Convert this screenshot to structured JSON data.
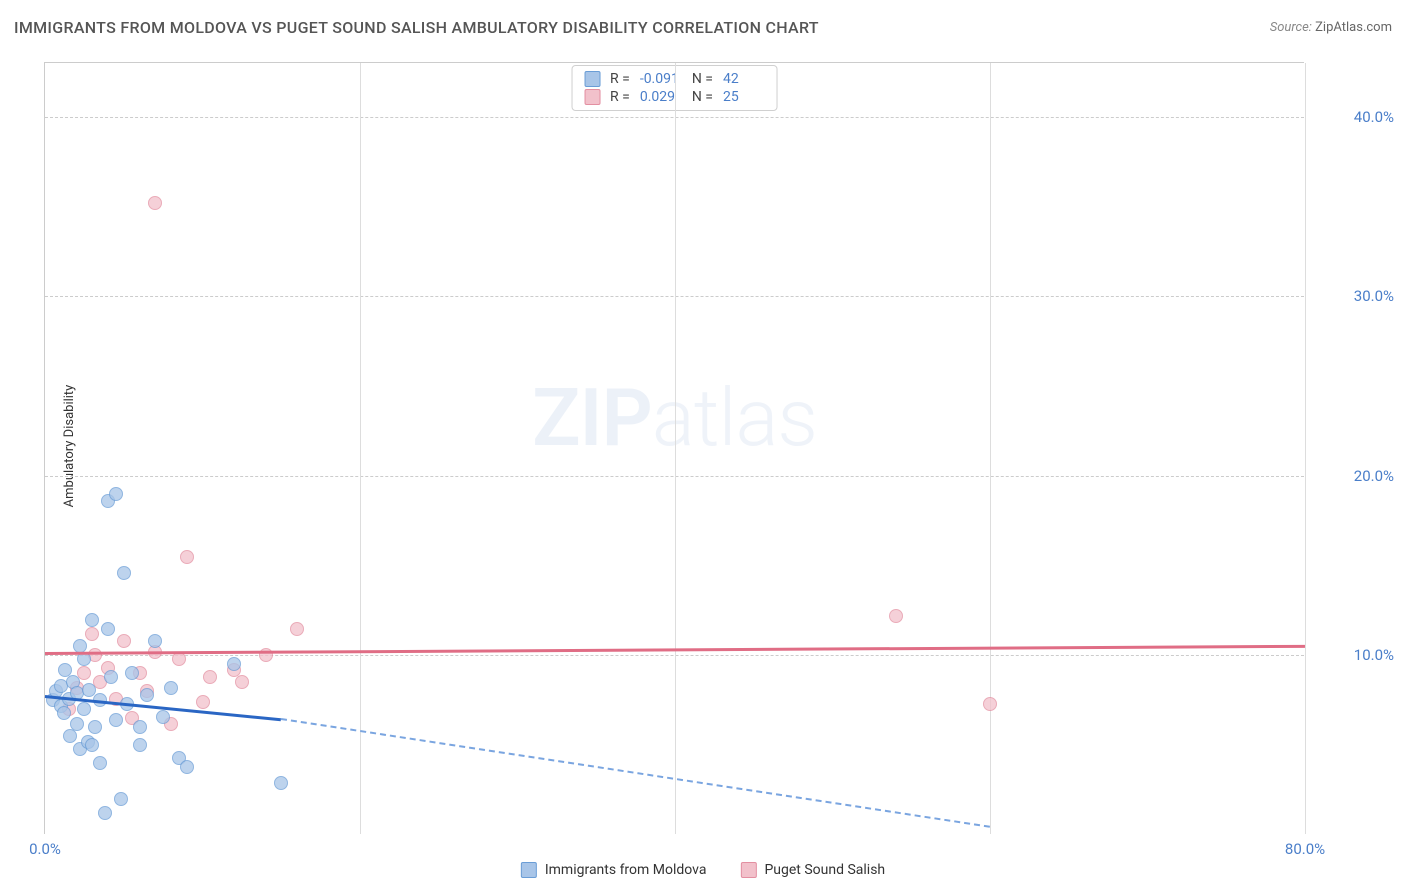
{
  "title": "IMMIGRANTS FROM MOLDOVA VS PUGET SOUND SALISH AMBULATORY DISABILITY CORRELATION CHART",
  "source_prefix": "Source:",
  "source_name": "ZipAtlas.com",
  "y_axis_label": "Ambulatory Disability",
  "watermark_bold": "ZIP",
  "watermark_thin": "atlas",
  "series": [
    {
      "name": "Immigrants from Moldova",
      "color_fill": "#a8c5e8",
      "color_stroke": "#6a9dd6",
      "r": "-0.091",
      "n": "42"
    },
    {
      "name": "Puget Sound Salish",
      "color_fill": "#f2c1cb",
      "color_stroke": "#e38fa1",
      "r": "0.029",
      "n": "25"
    }
  ],
  "chart": {
    "type": "scatter",
    "xlim": [
      0,
      80
    ],
    "ylim": [
      0,
      43
    ],
    "y_ticks": [
      10,
      20,
      30,
      40
    ],
    "y_tick_labels": [
      "10.0%",
      "20.0%",
      "30.0%",
      "40.0%"
    ],
    "x_ticks": [
      0,
      20,
      40,
      60,
      80
    ],
    "x_tick_labels": [
      "0.0%",
      "",
      "",
      "",
      "80.0%"
    ],
    "grid_h_dash_color": "#cccccc",
    "background_color": "#ffffff",
    "trend_lines": [
      {
        "series": 0,
        "solid_color": "#2a66c4",
        "dashed_color": "#7aa5e0",
        "x1": 0,
        "y1": 7.8,
        "x2_solid": 15,
        "y2_solid": 6.5,
        "x2_dash": 60,
        "y2_dash": 0.5
      },
      {
        "series": 1,
        "solid_color": "#e06d85",
        "dashed_color": "#e06d85",
        "x1": 0,
        "y1": 10.2,
        "x2_solid": 80,
        "y2_solid": 10.6
      }
    ],
    "points_s0": [
      [
        0.5,
        7.5
      ],
      [
        0.7,
        8.0
      ],
      [
        1.0,
        7.2
      ],
      [
        1.0,
        8.3
      ],
      [
        1.2,
        6.8
      ],
      [
        1.3,
        9.2
      ],
      [
        1.5,
        7.6
      ],
      [
        1.6,
        5.5
      ],
      [
        1.8,
        8.5
      ],
      [
        2.0,
        6.2
      ],
      [
        2.0,
        7.9
      ],
      [
        2.2,
        4.8
      ],
      [
        2.2,
        10.5
      ],
      [
        2.5,
        7.0
      ],
      [
        2.7,
        5.2
      ],
      [
        2.8,
        8.1
      ],
      [
        3.0,
        12.0
      ],
      [
        3.2,
        6.0
      ],
      [
        3.5,
        7.5
      ],
      [
        3.5,
        4.0
      ],
      [
        3.8,
        1.2
      ],
      [
        4.0,
        18.6
      ],
      [
        4.2,
        8.8
      ],
      [
        4.5,
        6.4
      ],
      [
        4.5,
        19.0
      ],
      [
        4.8,
        2.0
      ],
      [
        5.0,
        14.6
      ],
      [
        5.2,
        7.3
      ],
      [
        5.5,
        9.0
      ],
      [
        6.0,
        5.0
      ],
      [
        6.5,
        7.8
      ],
      [
        7.0,
        10.8
      ],
      [
        7.5,
        6.6
      ],
      [
        8.0,
        8.2
      ],
      [
        8.5,
        4.3
      ],
      [
        9.0,
        3.8
      ],
      [
        12.0,
        9.5
      ],
      [
        15.0,
        2.9
      ],
      [
        4.0,
        11.5
      ],
      [
        6.0,
        6.0
      ],
      [
        3.0,
        5.0
      ],
      [
        2.5,
        9.8
      ]
    ],
    "points_s1": [
      [
        1.5,
        7.0
      ],
      [
        2.0,
        8.2
      ],
      [
        2.5,
        9.0
      ],
      [
        3.0,
        11.2
      ],
      [
        3.2,
        10.0
      ],
      [
        3.5,
        8.5
      ],
      [
        4.0,
        9.3
      ],
      [
        4.5,
        7.6
      ],
      [
        5.0,
        10.8
      ],
      [
        5.5,
        6.5
      ],
      [
        6.0,
        9.0
      ],
      [
        6.5,
        8.0
      ],
      [
        7.0,
        10.2
      ],
      [
        7.0,
        35.2
      ],
      [
        8.0,
        6.2
      ],
      [
        8.5,
        9.8
      ],
      [
        9.0,
        15.5
      ],
      [
        10.0,
        7.4
      ],
      [
        10.5,
        8.8
      ],
      [
        12.0,
        9.2
      ],
      [
        12.5,
        8.5
      ],
      [
        14.0,
        10.0
      ],
      [
        16.0,
        11.5
      ],
      [
        54.0,
        12.2
      ],
      [
        60.0,
        7.3
      ]
    ]
  },
  "legend_labels": {
    "r": "R =",
    "n": "N ="
  }
}
